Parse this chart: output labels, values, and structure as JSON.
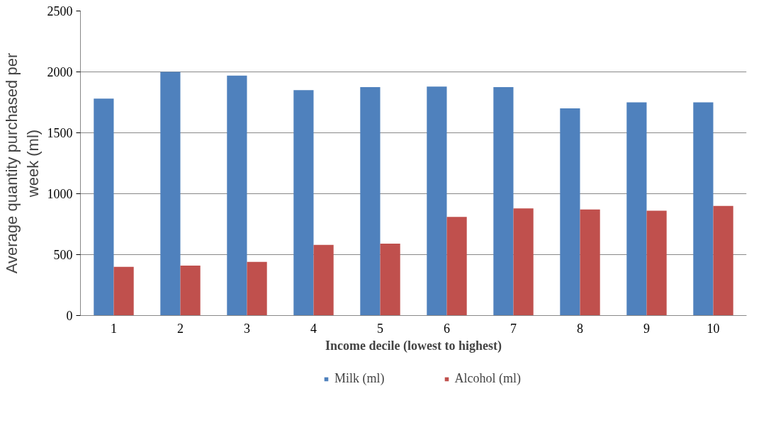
{
  "chart_data": {
    "type": "bar",
    "xlabel": "Income decile (lowest to highest)",
    "ylabel": "Average quantity purchased per week (ml)",
    "categories": [
      "1",
      "2",
      "3",
      "4",
      "5",
      "6",
      "7",
      "8",
      "9",
      "10"
    ],
    "series": [
      {
        "name": "Milk (ml)",
        "color": "#4f81bd",
        "values": [
          1780,
          2000,
          1970,
          1850,
          1875,
          1880,
          1875,
          1700,
          1750,
          1750
        ]
      },
      {
        "name": "Alcohol (ml)",
        "color": "#c0504d",
        "values": [
          400,
          410,
          440,
          580,
          590,
          810,
          880,
          870,
          860,
          900
        ]
      }
    ],
    "ylim": [
      0,
      2500
    ],
    "yticks": [
      0,
      500,
      1000,
      1500,
      2000,
      2500
    ],
    "grid": "y",
    "legend": "bottom"
  }
}
